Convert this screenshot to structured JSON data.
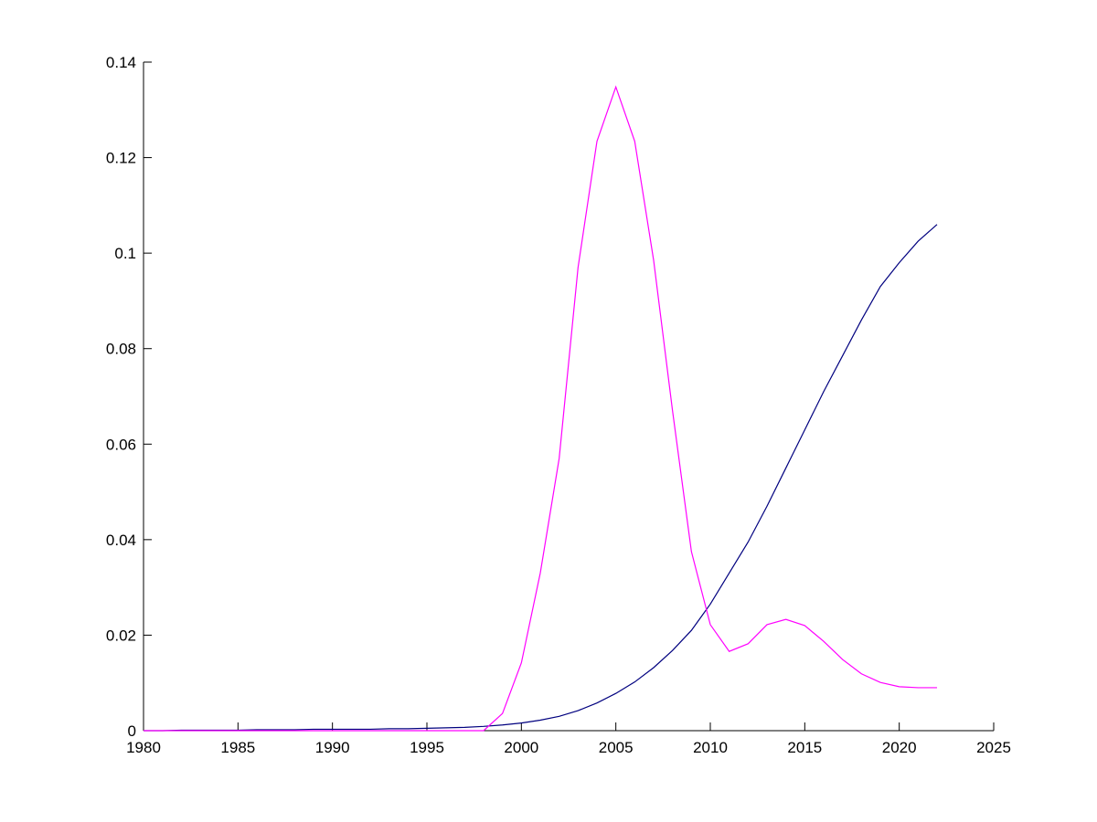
{
  "chart_data": {
    "type": "line",
    "x": [
      1980,
      1981,
      1982,
      1983,
      1984,
      1985,
      1986,
      1987,
      1988,
      1989,
      1990,
      1991,
      1992,
      1993,
      1994,
      1995,
      1996,
      1997,
      1998,
      1999,
      2000,
      2001,
      2002,
      2003,
      2004,
      2005,
      2006,
      2007,
      2008,
      2009,
      2010,
      2011,
      2012,
      2013,
      2014,
      2015,
      2016,
      2017,
      2018,
      2019,
      2020,
      2021,
      2022
    ],
    "series": [
      {
        "color": "#00007f",
        "values": [
          0,
          0,
          0.0001,
          0.0001,
          0.0001,
          0.0001,
          0.0002,
          0.0002,
          0.0002,
          0.0003,
          0.0003,
          0.0003,
          0.0003,
          0.0004,
          0.0004,
          0.0005,
          0.0006,
          0.0007,
          0.0009,
          0.0012,
          0.0016,
          0.0022,
          0.003,
          0.0042,
          0.0058,
          0.0078,
          0.0102,
          0.0132,
          0.0168,
          0.021,
          0.0265,
          0.033,
          0.0395,
          0.047,
          0.055,
          0.063,
          0.071,
          0.0785,
          0.086,
          0.093,
          0.098,
          0.1025,
          0.106
        ]
      },
      {
        "color": "#ff00ff",
        "values": [
          0,
          0,
          0,
          0,
          0,
          0,
          0,
          0,
          0,
          0,
          0,
          0,
          0,
          0,
          0,
          0,
          0,
          0,
          0,
          0.0036,
          0.0142,
          0.033,
          0.057,
          0.097,
          0.1234,
          0.1348,
          0.1234,
          0.0985,
          0.067,
          0.0375,
          0.0222,
          0.0166,
          0.0182,
          0.0222,
          0.0233,
          0.022,
          0.0187,
          0.0149,
          0.0119,
          0.0101,
          0.0092,
          0.009,
          0.009
        ]
      }
    ],
    "xlim": [
      1980,
      2025
    ],
    "xticks": [
      1980,
      1985,
      1990,
      1995,
      2000,
      2005,
      2010,
      2015,
      2020,
      2025
    ],
    "ylim": [
      0,
      0.14
    ],
    "yticks": [
      0,
      0.02,
      0.04,
      0.06,
      0.08,
      0.1,
      0.12,
      0.14
    ]
  }
}
